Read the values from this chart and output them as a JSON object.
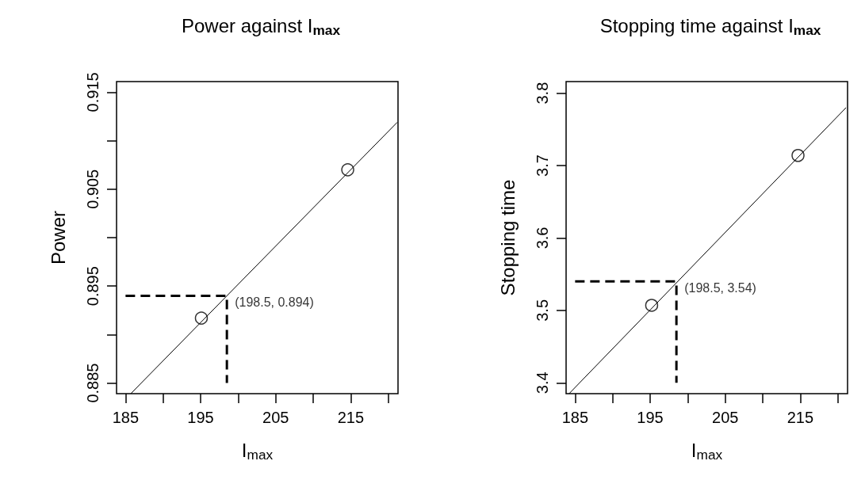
{
  "chart_data": [
    {
      "type": "line",
      "title": "Power against I$_{max}$",
      "xlabel": "I$_{max}$",
      "ylabel": "Power",
      "xlim": [
        183.8,
        221.3
      ],
      "ylim": [
        0.8839,
        0.9161
      ],
      "xticks": [
        185,
        {
          "value": 190,
          "label": null
        },
        195,
        {
          "value": 200,
          "label": null
        },
        205,
        {
          "value": 210,
          "label": null
        },
        215,
        {
          "value": 220,
          "label": null
        }
      ],
      "yticks": [
        0.885,
        {
          "value": 0.89,
          "label": null
        },
        0.895,
        {
          "value": 0.9,
          "label": null
        },
        0.905,
        {
          "value": 0.91,
          "label": null
        },
        0.915
      ],
      "series": [
        {
          "type": "scatter",
          "marker": "circle",
          "color": "#000000",
          "x": [
            195.1,
            214.6
          ],
          "values": [
            0.8917,
            0.907
          ]
        },
        {
          "line_style": "solid",
          "color": "#000000",
          "x": [
            185.7,
            221.2
          ],
          "values": [
            0.8839,
            0.9119
          ]
        },
        {
          "line_style": "dashed",
          "color": "#000000",
          "x": [
            185,
            198.5,
            198.5
          ],
          "values": [
            0.894,
            0.894,
            0.885
          ]
        }
      ],
      "annotations": [
        {
          "text": "(198.5, 0.894)",
          "x": 198.5,
          "y": 0.894
        }
      ],
      "grid": false
    },
    {
      "type": "line",
      "title": "Stopping time against I$_{max}$",
      "xlabel": "I$_{max}$",
      "ylabel": "Stopping time",
      "xlim": [
        183.8,
        221.3
      ],
      "ylim": [
        3.385,
        3.816
      ],
      "xticks": [
        185,
        {
          "value": 190,
          "label": null
        },
        195,
        {
          "value": 200,
          "label": null
        },
        205,
        {
          "value": 210,
          "label": null
        },
        215,
        {
          "value": 220,
          "label": null
        }
      ],
      "yticks": [
        3.4,
        3.5,
        3.6,
        3.7,
        3.8
      ],
      "series": [
        {
          "type": "scatter",
          "marker": "circle",
          "color": "#000000",
          "x": [
            195.2,
            214.7
          ],
          "values": [
            3.507,
            3.714
          ]
        },
        {
          "line_style": "solid",
          "color": "#000000",
          "x": [
            184.2,
            221.1
          ],
          "values": [
            3.385,
            3.78
          ]
        },
        {
          "line_style": "dashed",
          "color": "#000000",
          "x": [
            185,
            198.5,
            198.5
          ],
          "values": [
            3.54,
            3.54,
            3.4
          ]
        }
      ],
      "annotations": [
        {
          "text": "(198.5, 3.54)",
          "x": 198.5,
          "y": 3.54
        }
      ],
      "grid": false
    }
  ]
}
